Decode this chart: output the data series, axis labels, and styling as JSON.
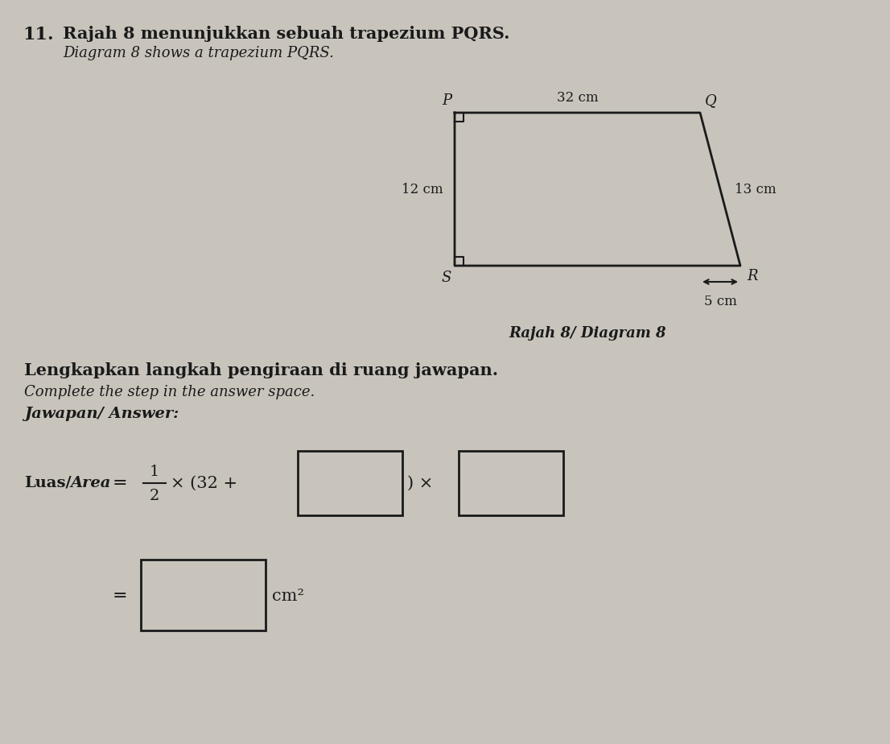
{
  "bg_color": "#c8c4bc",
  "title_number": "11.",
  "title_malay": "Rajah 8 menunjukkan sebuah trapezium PQRS.",
  "title_english": "Diagram 8 shows a trapezium PQRS.",
  "diagram_label": "Rajah 8/ Diagram 8",
  "instruction_malay": "Lengkapkan langkah pengiraan di ruang jawapan.",
  "instruction_english": "Complete the step in the answer space.",
  "answer_label": "Jawapan/ Answer:",
  "label_P": "P",
  "label_Q": "Q",
  "label_S": "S",
  "label_R": "R",
  "dim_top": "32 cm",
  "dim_left": "12 cm",
  "dim_right": "13 cm",
  "dim_bottom_ext": "5 cm",
  "line_color": "#1a1a1a",
  "text_color": "#1a1a1a"
}
